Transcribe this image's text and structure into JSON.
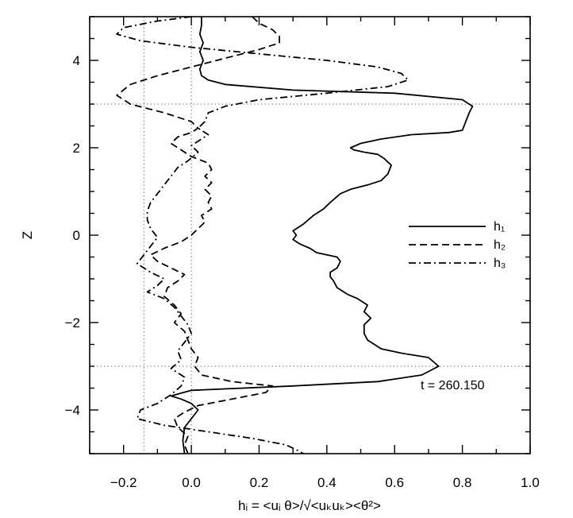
{
  "chart_data": {
    "type": "line",
    "xlabel": "hᵢ = <uᵢ θ>/√<uₖuₖ><θ²>",
    "ylabel": "Z",
    "xlim": [
      -0.3,
      1.0
    ],
    "ylim": [
      -5,
      5
    ],
    "x_ticks": [
      -0.2,
      0.0,
      0.2,
      0.4,
      0.6,
      0.8,
      1.0
    ],
    "x_tick_labels": [
      "−0.2",
      "0.0",
      "0.2",
      "0.4",
      "0.6",
      "0.8",
      "1.0"
    ],
    "y_ticks": [
      -4,
      -2,
      0,
      2,
      4
    ],
    "y_tick_labels": [
      "−4",
      "−2",
      "0",
      "2",
      "4"
    ],
    "reference_lines": {
      "x": [
        -0.14,
        0.0
      ],
      "y": [
        3.0,
        -3.0
      ],
      "style": "dotted"
    },
    "annotation": "t = 260.150",
    "legend_position": "right",
    "series": [
      {
        "name": "h₁",
        "dash": "solid",
        "points": [
          [
            -0.02,
            -5.0
          ],
          [
            -0.025,
            -4.7
          ],
          [
            -0.02,
            -4.4
          ],
          [
            0.0,
            -4.2
          ],
          [
            0.02,
            -4.0
          ],
          [
            0.0,
            -3.85
          ],
          [
            -0.03,
            -3.75
          ],
          [
            -0.06,
            -3.68
          ],
          [
            0.0,
            -3.55
          ],
          [
            0.3,
            -3.45
          ],
          [
            0.55,
            -3.35
          ],
          [
            0.68,
            -3.2
          ],
          [
            0.73,
            -3.0
          ],
          [
            0.7,
            -2.8
          ],
          [
            0.62,
            -2.7
          ],
          [
            0.56,
            -2.6
          ],
          [
            0.52,
            -2.4
          ],
          [
            0.51,
            -2.25
          ],
          [
            0.51,
            -2.05
          ],
          [
            0.53,
            -1.9
          ],
          [
            0.51,
            -1.75
          ],
          [
            0.52,
            -1.6
          ],
          [
            0.49,
            -1.45
          ],
          [
            0.46,
            -1.35
          ],
          [
            0.43,
            -1.2
          ],
          [
            0.42,
            -1.05
          ],
          [
            0.41,
            -0.95
          ],
          [
            0.41,
            -0.85
          ],
          [
            0.43,
            -0.75
          ],
          [
            0.44,
            -0.6
          ],
          [
            0.43,
            -0.5
          ],
          [
            0.4,
            -0.45
          ],
          [
            0.37,
            -0.4
          ],
          [
            0.35,
            -0.3
          ],
          [
            0.32,
            -0.2
          ],
          [
            0.3,
            -0.1
          ],
          [
            0.31,
            0.0
          ],
          [
            0.3,
            0.1
          ],
          [
            0.33,
            0.25
          ],
          [
            0.36,
            0.45
          ],
          [
            0.39,
            0.6
          ],
          [
            0.41,
            0.75
          ],
          [
            0.44,
            0.95
          ],
          [
            0.47,
            1.05
          ],
          [
            0.52,
            1.15
          ],
          [
            0.56,
            1.25
          ],
          [
            0.58,
            1.4
          ],
          [
            0.59,
            1.6
          ],
          [
            0.57,
            1.75
          ],
          [
            0.55,
            1.85
          ],
          [
            0.51,
            1.9
          ],
          [
            0.48,
            1.95
          ],
          [
            0.47,
            2.0
          ],
          [
            0.5,
            2.1
          ],
          [
            0.56,
            2.2
          ],
          [
            0.65,
            2.3
          ],
          [
            0.76,
            2.35
          ],
          [
            0.8,
            2.4
          ],
          [
            0.81,
            2.6
          ],
          [
            0.82,
            2.8
          ],
          [
            0.83,
            2.95
          ],
          [
            0.8,
            3.1
          ],
          [
            0.6,
            3.25
          ],
          [
            0.3,
            3.32
          ],
          [
            0.1,
            3.45
          ],
          [
            0.05,
            3.55
          ],
          [
            0.03,
            3.65
          ],
          [
            0.025,
            3.8
          ],
          [
            0.035,
            4.0
          ],
          [
            0.025,
            4.2
          ],
          [
            0.035,
            4.4
          ],
          [
            0.025,
            4.6
          ],
          [
            0.03,
            4.8
          ],
          [
            0.03,
            5.0
          ]
        ]
      },
      {
        "name": "h₂",
        "dash": "dashed",
        "points": [
          [
            0.18,
            5.0
          ],
          [
            0.2,
            4.85
          ],
          [
            0.24,
            4.7
          ],
          [
            0.26,
            4.55
          ],
          [
            0.26,
            4.4
          ],
          [
            0.2,
            4.25
          ],
          [
            0.1,
            4.05
          ],
          [
            0.0,
            3.85
          ],
          [
            -0.1,
            3.65
          ],
          [
            -0.18,
            3.45
          ],
          [
            -0.22,
            3.2
          ],
          [
            -0.18,
            3.0
          ],
          [
            -0.08,
            2.8
          ],
          [
            0.0,
            2.6
          ],
          [
            0.02,
            2.45
          ],
          [
            0.0,
            2.35
          ],
          [
            -0.04,
            2.25
          ],
          [
            -0.06,
            2.1
          ],
          [
            -0.03,
            1.95
          ],
          [
            0.0,
            1.8
          ],
          [
            0.05,
            1.65
          ],
          [
            0.06,
            1.5
          ],
          [
            0.04,
            1.35
          ],
          [
            0.06,
            1.2
          ],
          [
            0.04,
            1.05
          ],
          [
            0.06,
            0.9
          ],
          [
            0.05,
            0.75
          ],
          [
            0.06,
            0.6
          ],
          [
            0.03,
            0.45
          ],
          [
            0.04,
            0.3
          ],
          [
            0.02,
            0.15
          ],
          [
            0.0,
            0.0
          ],
          [
            -0.03,
            -0.15
          ],
          [
            -0.08,
            -0.3
          ],
          [
            -0.12,
            -0.45
          ],
          [
            -0.1,
            -0.6
          ],
          [
            -0.06,
            -0.75
          ],
          [
            -0.02,
            -0.9
          ],
          [
            -0.04,
            -1.05
          ],
          [
            -0.07,
            -1.2
          ],
          [
            -0.08,
            -1.4
          ],
          [
            -0.05,
            -1.6
          ],
          [
            -0.03,
            -1.8
          ],
          [
            -0.05,
            -2.0
          ],
          [
            -0.02,
            -2.2
          ],
          [
            -0.01,
            -2.4
          ],
          [
            0.0,
            -2.6
          ],
          [
            0.02,
            -2.8
          ],
          [
            0.01,
            -3.0
          ],
          [
            0.03,
            -3.2
          ],
          [
            0.12,
            -3.35
          ],
          [
            0.24,
            -3.45
          ],
          [
            0.22,
            -3.6
          ],
          [
            0.12,
            -3.75
          ],
          [
            0.02,
            -3.9
          ],
          [
            -0.02,
            -4.05
          ],
          [
            -0.05,
            -4.2
          ],
          [
            -0.04,
            -4.4
          ],
          [
            -0.01,
            -4.6
          ],
          [
            -0.02,
            -4.8
          ],
          [
            -0.01,
            -5.0
          ]
        ]
      },
      {
        "name": "h₃",
        "dash": "dashdot",
        "points": [
          [
            0.0,
            5.0
          ],
          [
            -0.1,
            4.9
          ],
          [
            -0.2,
            4.75
          ],
          [
            -0.22,
            4.6
          ],
          [
            -0.15,
            4.45
          ],
          [
            0.0,
            4.3
          ],
          [
            0.2,
            4.15
          ],
          [
            0.4,
            4.0
          ],
          [
            0.55,
            3.85
          ],
          [
            0.62,
            3.7
          ],
          [
            0.64,
            3.55
          ],
          [
            0.58,
            3.4
          ],
          [
            0.4,
            3.25
          ],
          [
            0.2,
            3.1
          ],
          [
            0.1,
            2.95
          ],
          [
            0.05,
            2.8
          ],
          [
            0.04,
            2.6
          ],
          [
            0.02,
            2.45
          ],
          [
            0.05,
            2.3
          ],
          [
            0.03,
            2.2
          ],
          [
            0.0,
            2.05
          ],
          [
            0.02,
            1.9
          ],
          [
            -0.01,
            1.7
          ],
          [
            -0.04,
            1.55
          ],
          [
            -0.06,
            1.35
          ],
          [
            -0.08,
            1.15
          ],
          [
            -0.1,
            0.95
          ],
          [
            -0.12,
            0.75
          ],
          [
            -0.13,
            0.55
          ],
          [
            -0.13,
            0.35
          ],
          [
            -0.12,
            0.15
          ],
          [
            -0.1,
            -0.05
          ],
          [
            -0.12,
            -0.25
          ],
          [
            -0.14,
            -0.45
          ],
          [
            -0.16,
            -0.65
          ],
          [
            -0.12,
            -0.85
          ],
          [
            -0.08,
            -1.0
          ],
          [
            -0.1,
            -1.15
          ],
          [
            -0.13,
            -1.3
          ],
          [
            -0.08,
            -1.45
          ],
          [
            -0.05,
            -1.65
          ],
          [
            -0.03,
            -1.85
          ],
          [
            -0.01,
            -2.05
          ],
          [
            0.0,
            -2.25
          ],
          [
            -0.02,
            -2.45
          ],
          [
            -0.04,
            -2.65
          ],
          [
            -0.03,
            -2.85
          ],
          [
            -0.06,
            -3.05
          ],
          [
            -0.02,
            -3.25
          ],
          [
            -0.03,
            -3.45
          ],
          [
            -0.06,
            -3.65
          ],
          [
            -0.1,
            -3.85
          ],
          [
            -0.15,
            -4.0
          ],
          [
            -0.16,
            -4.2
          ],
          [
            -0.08,
            -4.35
          ],
          [
            0.05,
            -4.5
          ],
          [
            0.18,
            -4.65
          ],
          [
            0.28,
            -4.8
          ],
          [
            0.32,
            -4.95
          ],
          [
            0.33,
            -5.0
          ]
        ]
      }
    ]
  }
}
